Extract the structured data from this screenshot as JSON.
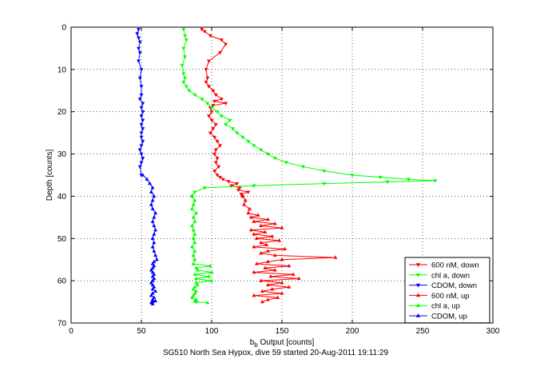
{
  "chart_data": {
    "type": "line",
    "title": "",
    "caption": "SG510 North Sea Hypox, dive 59 started 20-Aug-2011 19:11:29",
    "xlabel": {
      "main": "b",
      "sub": "b",
      "rest": " Output [counts]"
    },
    "ylabel": "Depth [counts]",
    "xlim": [
      0,
      300
    ],
    "ylim": [
      0,
      70
    ],
    "y_reversed": true,
    "grid": true,
    "legend_position": "bottom-right",
    "x_ticks": [
      "0",
      "50",
      "100",
      "150",
      "200",
      "250",
      "300"
    ],
    "y_ticks": [
      "0",
      "10",
      "20",
      "30",
      "40",
      "50",
      "60",
      "70"
    ],
    "series": [
      {
        "name": "600 nM, down",
        "color": "#ff0000",
        "marker": "triangle-down",
        "x": [
          93,
          95,
          99,
          107,
          110,
          106,
          98,
          96,
          97,
          96,
          98,
          101,
          103,
          107,
          102,
          110,
          101,
          99,
          100,
          98,
          100,
          103,
          101,
          99,
          102,
          104,
          106,
          103,
          102,
          104,
          103,
          105,
          102,
          104,
          106,
          108,
          112,
          118,
          114,
          120,
          119,
          126,
          121,
          122
        ],
        "y": [
          0.5,
          1,
          2,
          3,
          4,
          6,
          8,
          10,
          12,
          13,
          14,
          15,
          16,
          17,
          17.5,
          18,
          18.5,
          19,
          20,
          21,
          22,
          23,
          24,
          25,
          26,
          27,
          28,
          29,
          30,
          31,
          32,
          33,
          34,
          35,
          35.5,
          36,
          36.5,
          37,
          37.5,
          38,
          38.5,
          39,
          39.5,
          40
        ]
      },
      {
        "name": "chl a, down",
        "color": "#00ff00",
        "marker": "triangle-down",
        "x": [
          80,
          81,
          82,
          80,
          81,
          79,
          80,
          81,
          80,
          82,
          84,
          88,
          93,
          97,
          100,
          104,
          107,
          113,
          110,
          115,
          118,
          122,
          126,
          130,
          135,
          140,
          145,
          153,
          165,
          180,
          200,
          220,
          240,
          259,
          225,
          180,
          130,
          95,
          88,
          86
        ],
        "y": [
          0.5,
          2,
          3,
          5,
          7,
          9,
          11,
          12,
          13,
          14,
          15,
          16,
          17,
          18,
          19,
          20,
          21,
          22,
          23,
          24,
          25,
          26,
          27,
          28,
          29,
          30,
          31,
          32,
          33,
          34,
          35,
          35.5,
          36,
          36.3,
          36.6,
          37,
          37.5,
          38,
          39,
          40
        ]
      },
      {
        "name": "CDOM, down",
        "color": "#0000ff",
        "marker": "triangle-down",
        "x": [
          48,
          47,
          48,
          49,
          48,
          49,
          48,
          50,
          49,
          50,
          50,
          49,
          51,
          50,
          51,
          50,
          51,
          50,
          51,
          50,
          50,
          51,
          50,
          49,
          50,
          51,
          50,
          49,
          50
        ],
        "y": [
          0.5,
          1.5,
          2.5,
          3.5,
          5,
          6,
          8,
          10,
          12,
          14,
          16,
          17,
          18,
          19,
          20,
          21,
          22,
          23,
          24,
          25,
          26,
          27,
          28,
          29,
          30,
          31,
          32,
          33,
          35
        ]
      },
      {
        "name": "600 nM, up",
        "color": "#ff0000",
        "marker": "triangle-up",
        "x": [
          122,
          124,
          123,
          127,
          126,
          133,
          128,
          140,
          130,
          145,
          135,
          150,
          128,
          138,
          130,
          143,
          132,
          148,
          135,
          139,
          130,
          152,
          140,
          135,
          145,
          188,
          150,
          140,
          132,
          155,
          138,
          145,
          130,
          158,
          142,
          162,
          135,
          150,
          140,
          155,
          143,
          136,
          150,
          130,
          147,
          140,
          136
        ],
        "y": [
          40,
          41,
          42,
          43,
          44,
          44.5,
          45,
          45.5,
          46,
          46.5,
          47,
          47.5,
          48,
          48.5,
          49,
          49.5,
          50,
          50.5,
          51,
          51.5,
          52,
          52.5,
          53,
          53.5,
          54,
          54.5,
          55,
          55.5,
          56,
          56.5,
          57,
          57.5,
          58,
          58.5,
          59,
          59.5,
          60,
          60.5,
          61,
          61.5,
          62,
          62.5,
          63,
          63.5,
          64,
          64.5,
          65
        ]
      },
      {
        "name": "chl a, up",
        "color": "#00ff00",
        "marker": "triangle-up",
        "x": [
          86,
          88,
          87,
          86,
          89,
          87,
          88,
          86,
          87,
          88,
          87,
          88,
          86,
          88,
          87,
          88,
          87,
          99,
          89,
          90,
          100,
          88,
          98,
          89,
          100,
          89,
          90,
          88,
          87,
          89,
          88,
          87,
          86,
          89,
          88,
          89,
          97
        ],
        "y": [
          40,
          41,
          42,
          43,
          44,
          45,
          46,
          47,
          48,
          49,
          50,
          51,
          52,
          53,
          54,
          55,
          56,
          56.5,
          57,
          57.5,
          58,
          58.5,
          59,
          59.5,
          60,
          60.5,
          61,
          61.5,
          62,
          62.5,
          63,
          63.5,
          64,
          64.5,
          64.8,
          65,
          65.2
        ]
      },
      {
        "name": "CDOM, up",
        "color": "#0000ff",
        "marker": "triangle-up",
        "x": [
          51,
          54,
          56,
          58,
          57,
          59,
          58,
          57,
          58,
          60,
          59,
          58,
          59,
          60,
          59,
          58,
          59,
          58,
          59,
          60,
          61,
          59,
          58,
          59,
          58,
          57,
          58,
          59,
          58,
          59,
          58,
          57,
          58,
          59,
          58,
          60,
          58,
          57,
          59,
          58,
          60,
          58,
          57,
          58
        ],
        "y": [
          35,
          36,
          37,
          38,
          39,
          40,
          41,
          42,
          43,
          44,
          45,
          46,
          47,
          48,
          49,
          50,
          51,
          52,
          53,
          54,
          55,
          55.5,
          56,
          56.5,
          57,
          57.5,
          58,
          58.5,
          59,
          59.5,
          60,
          60.5,
          61,
          61.5,
          62,
          62.5,
          63,
          63.5,
          64,
          64.5,
          64.8,
          65,
          65.2,
          65.5
        ]
      }
    ]
  }
}
